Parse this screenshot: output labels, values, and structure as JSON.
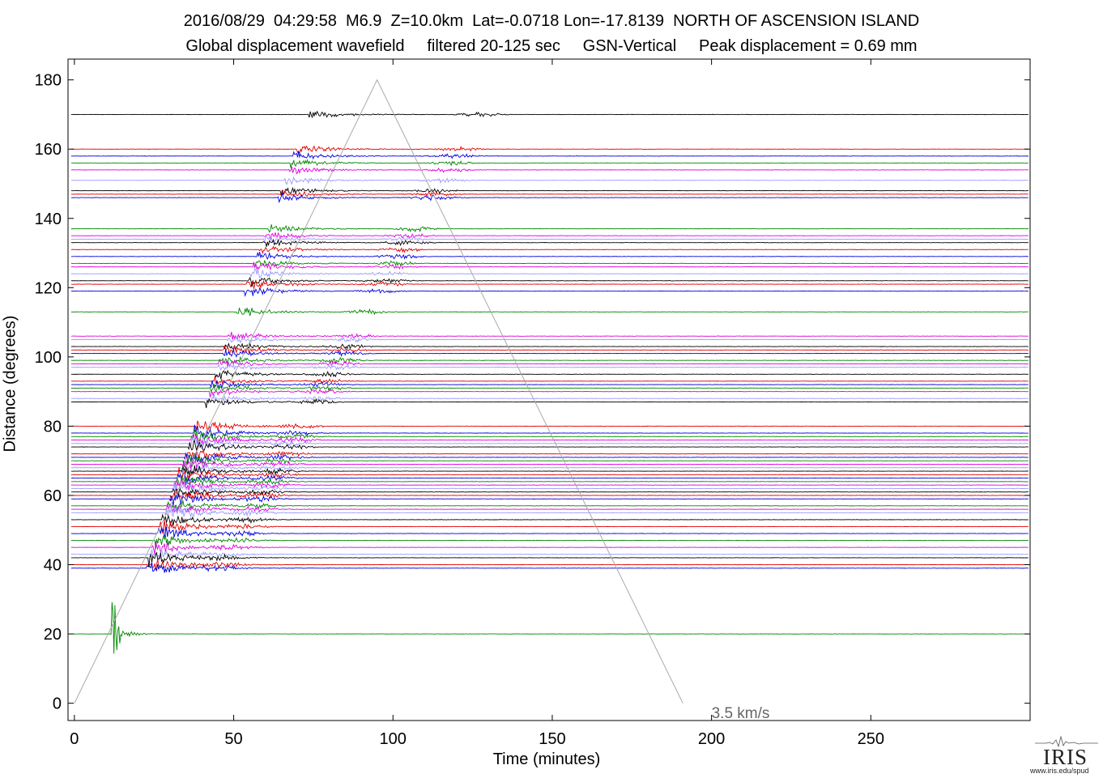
{
  "chart_data": {
    "type": "line",
    "title": "2016/08/29  04:29:58  M6.9  Z=10.0km  Lat=-0.0718 Lon=-17.8139  NORTH OF ASCENSION ISLAND",
    "subtitle": "Global displacement wavefield     filtered 20-125 sec     GSN-Vertical     Peak displacement = 0.69 mm",
    "xlabel": "Time (minutes)",
    "ylabel": "Distance (degrees)",
    "xlim": [
      -2,
      300
    ],
    "ylim": [
      -5,
      186
    ],
    "xticks": [
      0,
      50,
      100,
      150,
      200,
      250
    ],
    "yticks": [
      0,
      20,
      40,
      60,
      80,
      100,
      120,
      140,
      160,
      180
    ],
    "grid": false,
    "trace_colors": [
      "#000000",
      "#e00000",
      "#0000e0",
      "#008800",
      "#e000e0",
      "#9a9aff"
    ],
    "trace_distances": [
      170,
      160,
      158,
      156,
      154,
      151,
      148,
      147,
      146,
      137,
      135,
      134,
      133,
      131,
      129,
      127,
      126,
      124,
      122,
      121,
      119,
      113,
      106,
      105,
      103,
      102,
      101,
      99,
      98,
      97,
      95,
      93,
      92,
      91,
      90,
      88,
      87,
      80,
      78,
      77,
      76,
      75,
      74,
      72,
      71,
      70,
      69,
      68,
      67,
      66,
      65,
      64,
      63,
      62,
      61,
      60,
      59,
      57,
      56,
      55,
      53,
      51,
      49,
      47,
      45,
      43,
      42,
      40,
      39,
      20
    ],
    "reference_line": {
      "label": "3.5 km/s",
      "x": [
        0,
        95,
        191
      ],
      "y": [
        0,
        180,
        0
      ],
      "color": "#aaaaaa"
    },
    "peak_displacement_mm": 0.69
  },
  "logo": {
    "word": "IRIS",
    "url": "www.iris.edu/spud"
  }
}
